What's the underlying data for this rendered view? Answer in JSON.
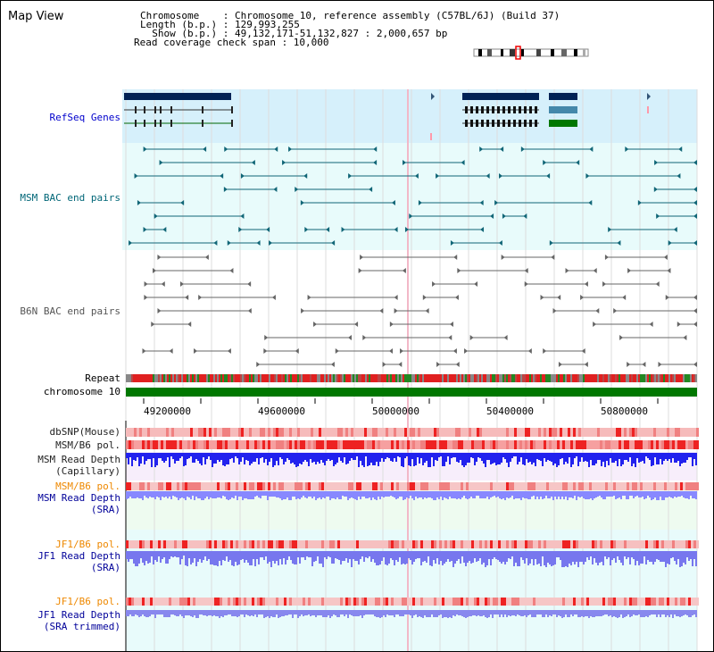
{
  "title": "Map View",
  "info": {
    "chromosome_key": "Chromosome    ",
    "chromosome_val": ": Chromosome 10, reference assembly (C57BL/6J) (Build 37)",
    "length_key": "Length (b.p.)",
    "length_val": ": 129,993,255",
    "show_key": "  Show (b.p.)",
    "show_val": ": 49,132,171-51,132,827 : 2,000,657 bp",
    "coverage": "Read coverage check span : 10,000"
  },
  "tracks": {
    "refseq": "RefSeq Genes",
    "msm_bac": "MSM BAC end pairs",
    "b6n_bac": "B6N BAC end pairs",
    "repeat": "Repeat",
    "chromosome": "chromosome 10",
    "dbsnp": "dbSNP(Mouse)",
    "msm_b6_pol": "MSM/B6 pol.",
    "msm_depth_cap_1": "MSM Read Depth",
    "msm_depth_cap_2": "(Capillary)",
    "msm_b6_pol_2": "MSM/B6 pol.",
    "msm_depth_sra_1": "MSM Read Depth",
    "msm_depth_sra_2": "(SRA)",
    "jf1_pol": "JF1/B6 pol.",
    "jf1_depth_sra_1": "JF1 Read Depth",
    "jf1_depth_sra_2": "(SRA)",
    "jf1_pol_2": "JF1/B6 pol.",
    "jf1_depth_trim_1": "JF1 Read Depth",
    "jf1_depth_trim_2": "(SRA trimmed)"
  },
  "axis_ticks": [
    "49200000",
    "49600000",
    "50000000",
    "50400000",
    "50800000"
  ],
  "colors": {
    "refseq_label": "#0000cc",
    "msm_bac_label": "#006677",
    "b6n_bac_label": "#555555",
    "pol_label": "#ee8800",
    "depth_label": "#000099",
    "refseq_bg": "#d6f0fb",
    "bac_bg": "#e8fbfb",
    "chromosome_bar": "#007700",
    "depth_cap": "#2222ee",
    "depth_sra": "#8888ff",
    "pol_red": "#ee2222",
    "pol_pink": "#f6bbbb"
  }
}
